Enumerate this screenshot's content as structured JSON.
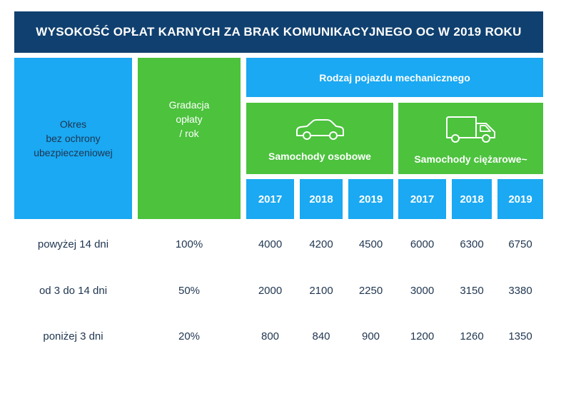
{
  "title": "WYSOKOŚĆ OPŁAT KARNYCH ZA BRAK KOMUNIKACYJNEGO OC W 2019 ROKU",
  "headers": {
    "period": [
      "Okres",
      "bez ochrony",
      "ubezpieczeniowej"
    ],
    "gradation": [
      "Gradacja",
      "opłaty",
      "/ rok"
    ],
    "vehicle_type": "Rodzaj pojazdu mechanicznego",
    "cars": "Samochody osobowe",
    "trucks": "Samochody ciężarowe~",
    "years": [
      "2017",
      "2018",
      "2019",
      "2017",
      "2018",
      "2019"
    ]
  },
  "icons": {
    "cars": "car-icon",
    "trucks": "truck-icon"
  },
  "colors": {
    "title_bg": "#10406f",
    "blue": "#1aa9f2",
    "green": "#4cc23d"
  },
  "chart_data": {
    "type": "table",
    "title": "WYSOKOŚĆ OPŁAT KARNYCH ZA BRAK KOMUNIKACYJNEGO OC W 2019 ROKU",
    "columns": [
      "Okres bez ochrony ubezpieczeniowej",
      "Gradacja opłaty / rok",
      "Samochody osobowe 2017",
      "Samochody osobowe 2018",
      "Samochody osobowe 2019",
      "Samochody ciężarowe 2017",
      "Samochody ciężarowe 2018",
      "Samochody ciężarowe 2019"
    ],
    "rows": [
      {
        "period": "powyżej 14 dni",
        "gradation": "100%",
        "values": [
          "4000",
          "4200",
          "4500",
          "6000",
          "6300",
          "6750"
        ]
      },
      {
        "period": "od 3 do 14 dni",
        "gradation": "50%",
        "values": [
          "2000",
          "2100",
          "2250",
          "3000",
          "3150",
          "3380"
        ]
      },
      {
        "period": "poniżej 3 dni",
        "gradation": "20%",
        "values": [
          "800",
          "840",
          "900",
          "1200",
          "1260",
          "1350"
        ]
      }
    ]
  }
}
